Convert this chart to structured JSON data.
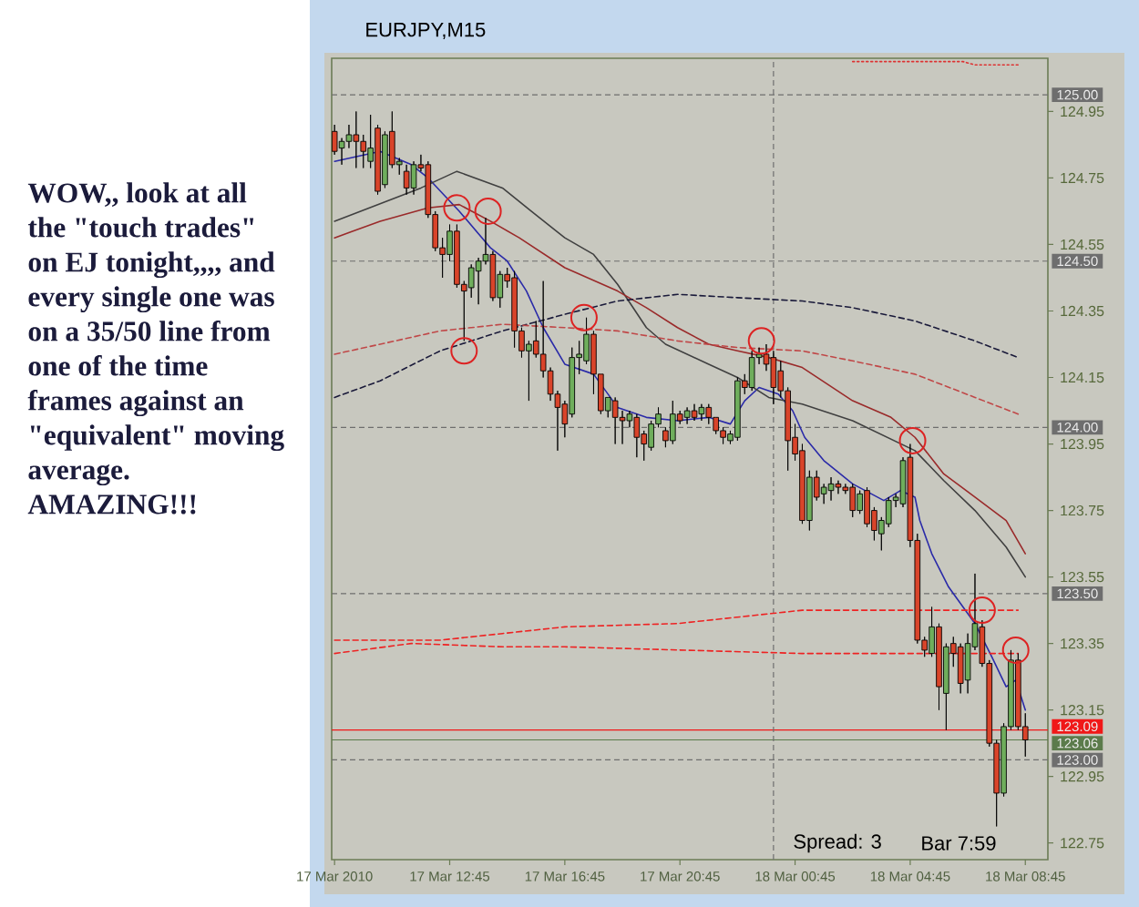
{
  "chart_data": {
    "type": "candlestick",
    "title": "EURJPY,M15",
    "annotations": [
      "WOW,, look at all the \"touch trades\" on EJ tonight,,,, and every single one was on a 35/50 line from one of the time frames against an \"equivalent\" moving average. AMAZING!!!",
      "Spread: 3",
      "Bar 7:59"
    ],
    "x": [
      "2010-03-17T08:45",
      "2010-03-17T09:00",
      "2010-03-17T09:15",
      "2010-03-17T09:30",
      "2010-03-17T09:45",
      "2010-03-17T10:00",
      "2010-03-17T10:15",
      "2010-03-17T10:30",
      "2010-03-17T10:45",
      "2010-03-17T11:00",
      "2010-03-17T11:15",
      "2010-03-17T11:30",
      "2010-03-17T11:45",
      "2010-03-17T12:00",
      "2010-03-17T12:15",
      "2010-03-17T12:30",
      "2010-03-17T12:45",
      "2010-03-17T13:00",
      "2010-03-17T13:15",
      "2010-03-17T13:30",
      "2010-03-17T13:45",
      "2010-03-17T14:00",
      "2010-03-17T14:15",
      "2010-03-17T14:30",
      "2010-03-17T14:45",
      "2010-03-17T15:00",
      "2010-03-17T15:15",
      "2010-03-17T15:30",
      "2010-03-17T15:45",
      "2010-03-17T16:00",
      "2010-03-17T16:15",
      "2010-03-17T16:30",
      "2010-03-17T16:45",
      "2010-03-17T17:00",
      "2010-03-17T17:15",
      "2010-03-17T17:30",
      "2010-03-17T17:45",
      "2010-03-17T18:00",
      "2010-03-17T18:15",
      "2010-03-17T18:30",
      "2010-03-17T18:45",
      "2010-03-17T19:00",
      "2010-03-17T19:15",
      "2010-03-17T19:30",
      "2010-03-17T19:45",
      "2010-03-17T20:00",
      "2010-03-17T20:15",
      "2010-03-17T20:30",
      "2010-03-17T20:45",
      "2010-03-17T21:00",
      "2010-03-17T21:15",
      "2010-03-17T21:30",
      "2010-03-17T21:45",
      "2010-03-17T22:00",
      "2010-03-17T22:15",
      "2010-03-17T22:30",
      "2010-03-17T22:45",
      "2010-03-17T23:00",
      "2010-03-17T23:15",
      "2010-03-17T23:30",
      "2010-03-17T23:45",
      "2010-03-18T00:00",
      "2010-03-18T00:15",
      "2010-03-18T00:30",
      "2010-03-18T00:45",
      "2010-03-18T01:00",
      "2010-03-18T01:15",
      "2010-03-18T01:30",
      "2010-03-18T01:45",
      "2010-03-18T02:00",
      "2010-03-18T02:15",
      "2010-03-18T02:30",
      "2010-03-18T02:45",
      "2010-03-18T03:00",
      "2010-03-18T03:15",
      "2010-03-18T03:30",
      "2010-03-18T03:45",
      "2010-03-18T04:00",
      "2010-03-18T04:15",
      "2010-03-18T04:30",
      "2010-03-18T04:45",
      "2010-03-18T05:00",
      "2010-03-18T05:15",
      "2010-03-18T05:30",
      "2010-03-18T05:45",
      "2010-03-18T06:00",
      "2010-03-18T06:15",
      "2010-03-18T06:30",
      "2010-03-18T06:45",
      "2010-03-18T07:00",
      "2010-03-18T07:15",
      "2010-03-18T07:30",
      "2010-03-18T07:45",
      "2010-03-18T08:00",
      "2010-03-18T08:15",
      "2010-03-18T08:30",
      "2010-03-18T08:45"
    ],
    "ohlc": [
      [
        124.89,
        124.91,
        124.82,
        124.83
      ],
      [
        124.84,
        124.87,
        124.79,
        124.86
      ],
      [
        124.86,
        124.91,
        124.84,
        124.88
      ],
      [
        124.88,
        124.95,
        124.78,
        124.86
      ],
      [
        124.86,
        124.88,
        124.78,
        124.83
      ],
      [
        124.8,
        124.94,
        124.78,
        124.84
      ],
      [
        124.9,
        124.91,
        124.7,
        124.71
      ],
      [
        124.73,
        124.89,
        124.72,
        124.88
      ],
      [
        124.89,
        124.95,
        124.78,
        124.79
      ],
      [
        124.79,
        124.81,
        124.76,
        124.8
      ],
      [
        124.77,
        124.79,
        124.7,
        124.72
      ],
      [
        124.72,
        124.8,
        124.7,
        124.79
      ],
      [
        124.79,
        124.82,
        124.77,
        124.78
      ],
      [
        124.79,
        124.8,
        124.63,
        124.64
      ],
      [
        124.64,
        124.65,
        124.53,
        124.54
      ],
      [
        124.54,
        124.57,
        124.45,
        124.52
      ],
      [
        124.52,
        124.61,
        124.5,
        124.59
      ],
      [
        124.59,
        124.61,
        124.42,
        124.43
      ],
      [
        124.43,
        124.44,
        124.26,
        124.41
      ],
      [
        124.42,
        124.49,
        124.39,
        124.48
      ],
      [
        124.47,
        124.51,
        124.37,
        124.5
      ],
      [
        124.5,
        124.63,
        124.49,
        124.52
      ],
      [
        124.52,
        124.53,
        124.38,
        124.39
      ],
      [
        124.39,
        124.47,
        124.36,
        124.46
      ],
      [
        124.46,
        124.48,
        124.42,
        124.44
      ],
      [
        124.45,
        124.47,
        124.24,
        124.29
      ],
      [
        124.29,
        124.3,
        124.21,
        124.23
      ],
      [
        124.23,
        124.26,
        124.08,
        124.25
      ],
      [
        124.26,
        124.32,
        124.21,
        124.22
      ],
      [
        124.22,
        124.44,
        124.15,
        124.17
      ],
      [
        124.17,
        124.18,
        124.08,
        124.1
      ],
      [
        124.1,
        124.11,
        123.93,
        124.06
      ],
      [
        124.07,
        124.08,
        123.97,
        124.01
      ],
      [
        124.04,
        124.24,
        124.03,
        124.21
      ],
      [
        124.21,
        124.26,
        124.16,
        124.22
      ],
      [
        124.2,
        124.33,
        124.19,
        124.28
      ],
      [
        124.28,
        124.29,
        124.1,
        124.16
      ],
      [
        124.16,
        124.16,
        124.04,
        124.05
      ],
      [
        124.05,
        124.09,
        124.03,
        124.09
      ],
      [
        124.08,
        124.09,
        123.95,
        124.03
      ],
      [
        124.03,
        124.05,
        123.95,
        124.02
      ],
      [
        124.02,
        124.05,
        124.0,
        124.04
      ],
      [
        124.03,
        124.04,
        123.91,
        123.97
      ],
      [
        123.98,
        123.99,
        123.9,
        123.95
      ],
      [
        123.94,
        124.02,
        123.93,
        124.01
      ],
      [
        124.01,
        124.06,
        124.0,
        124.04
      ],
      [
        123.99,
        124.0,
        123.94,
        123.96
      ],
      [
        123.96,
        124.08,
        123.95,
        124.04
      ],
      [
        124.04,
        124.05,
        124.01,
        124.02
      ],
      [
        124.03,
        124.06,
        124.01,
        124.05
      ],
      [
        124.05,
        124.07,
        124.02,
        124.03
      ],
      [
        124.04,
        124.07,
        124.02,
        124.06
      ],
      [
        124.06,
        124.07,
        124.01,
        124.03
      ],
      [
        124.03,
        124.03,
        123.98,
        123.99
      ],
      [
        123.99,
        124.0,
        123.95,
        123.97
      ],
      [
        123.96,
        123.99,
        123.95,
        123.98
      ],
      [
        123.97,
        124.15,
        123.96,
        124.14
      ],
      [
        124.14,
        124.16,
        124.1,
        124.12
      ],
      [
        124.12,
        124.23,
        124.11,
        124.21
      ],
      [
        124.21,
        124.24,
        124.19,
        124.22
      ],
      [
        124.22,
        124.25,
        124.17,
        124.19
      ],
      [
        124.21,
        124.23,
        124.07,
        124.12
      ],
      [
        124.17,
        124.2,
        124.09,
        124.11
      ],
      [
        124.11,
        124.12,
        123.87,
        123.96
      ],
      [
        123.97,
        124.01,
        123.9,
        123.92
      ],
      [
        123.93,
        123.95,
        123.71,
        123.72
      ],
      [
        123.72,
        123.87,
        123.69,
        123.85
      ],
      [
        123.85,
        123.87,
        123.78,
        123.79
      ],
      [
        123.8,
        123.83,
        123.77,
        123.82
      ],
      [
        123.81,
        123.85,
        123.78,
        123.83
      ],
      [
        123.83,
        123.84,
        123.8,
        123.82
      ],
      [
        123.82,
        123.83,
        123.8,
        123.81
      ],
      [
        123.82,
        123.83,
        123.73,
        123.75
      ],
      [
        123.75,
        123.81,
        123.74,
        123.8
      ],
      [
        123.81,
        123.82,
        123.7,
        123.71
      ],
      [
        123.75,
        123.76,
        123.66,
        123.69
      ],
      [
        123.68,
        123.73,
        123.63,
        123.72
      ],
      [
        123.71,
        123.79,
        123.7,
        123.78
      ],
      [
        123.78,
        123.8,
        123.76,
        123.79
      ],
      [
        123.77,
        123.91,
        123.76,
        123.9
      ],
      [
        123.91,
        123.95,
        123.64,
        123.66
      ],
      [
        123.66,
        123.68,
        123.35,
        123.36
      ],
      [
        123.36,
        123.37,
        123.31,
        123.33
      ],
      [
        123.32,
        123.46,
        123.31,
        123.4
      ],
      [
        123.4,
        123.41,
        123.15,
        123.22
      ],
      [
        123.2,
        123.35,
        123.09,
        123.34
      ],
      [
        123.35,
        123.37,
        123.28,
        123.32
      ],
      [
        123.34,
        123.35,
        123.2,
        123.23
      ],
      [
        123.24,
        123.38,
        123.2,
        123.35
      ],
      [
        123.34,
        123.56,
        123.33,
        123.41
      ],
      [
        123.4,
        123.42,
        123.28,
        123.29
      ],
      [
        123.29,
        123.3,
        123.04,
        123.05
      ],
      [
        123.05,
        123.06,
        122.8,
        122.9
      ],
      [
        122.9,
        123.11,
        122.89,
        123.1
      ],
      [
        123.1,
        123.33,
        123.09,
        123.3
      ],
      [
        123.3,
        123.32,
        123.09,
        123.1
      ],
      [
        123.1,
        123.14,
        123.01,
        123.06
      ]
    ],
    "colors": [
      "#d9442a",
      "#6fae5c",
      "#6fae5c",
      "#d9442a",
      "#d9442a",
      "#6fae5c",
      "#d9442a",
      "#6fae5c",
      "#d9442a",
      "#6fae5c",
      "#d9442a",
      "#6fae5c",
      "#d9442a",
      "#d9442a",
      "#d9442a",
      "#d9442a",
      "#6fae5c",
      "#d9442a",
      "#d9442a",
      "#6fae5c",
      "#6fae5c",
      "#6fae5c",
      "#d9442a",
      "#6fae5c",
      "#d9442a",
      "#d9442a",
      "#d9442a",
      "#6fae5c",
      "#d9442a",
      "#d9442a",
      "#d9442a",
      "#d9442a",
      "#d9442a",
      "#6fae5c",
      "#6fae5c",
      "#6fae5c",
      "#d9442a",
      "#d9442a",
      "#6fae5c",
      "#d9442a",
      "#d9442a",
      "#6fae5c",
      "#d9442a",
      "#d9442a",
      "#6fae5c",
      "#6fae5c",
      "#d9442a",
      "#6fae5c",
      "#d9442a",
      "#6fae5c",
      "#d9442a",
      "#6fae5c",
      "#d9442a",
      "#d9442a",
      "#d9442a",
      "#6fae5c",
      "#6fae5c",
      "#d9442a",
      "#6fae5c",
      "#6fae5c",
      "#d9442a",
      "#d9442a",
      "#d9442a",
      "#d9442a",
      "#d9442a",
      "#d9442a",
      "#6fae5c",
      "#d9442a",
      "#6fae5c",
      "#6fae5c",
      "#d9442a",
      "#d9442a",
      "#d9442a",
      "#6fae5c",
      "#d9442a",
      "#d9442a",
      "#6fae5c",
      "#6fae5c",
      "#6fae5c",
      "#6fae5c",
      "#d9442a",
      "#d9442a",
      "#d9442a",
      "#6fae5c",
      "#d9442a",
      "#6fae5c",
      "#d9442a",
      "#d9442a",
      "#6fae5c",
      "#6fae5c",
      "#d9442a",
      "#d9442a",
      "#d9442a",
      "#6fae5c",
      "#6fae5c",
      "#d9442a",
      "#d9442a"
    ],
    "series": [
      {
        "type": "line",
        "color": "#2a2aa8",
        "line_style": "solid",
        "x": [
          "2010-03-17T08:45",
          "2010-03-17T10:20",
          "2010-03-17T11:25",
          "2010-03-17T12:00",
          "2010-03-17T13:05",
          "2010-03-17T14:10",
          "2010-03-17T14:45",
          "2010-03-17T15:25",
          "2010-03-17T16:00",
          "2010-03-17T16:45",
          "2010-03-17T17:45",
          "2010-03-17T18:35",
          "2010-03-17T19:35",
          "2010-03-17T20:40",
          "2010-03-17T21:45",
          "2010-03-17T22:30",
          "2010-03-17T23:00",
          "2010-03-17T23:30",
          "2010-03-18T00:10",
          "2010-03-18T00:40",
          "2010-03-18T01:05",
          "2010-03-18T01:45",
          "2010-03-18T02:45",
          "2010-03-18T03:50",
          "2010-03-18T04:25",
          "2010-03-18T04:55",
          "2010-03-18T05:05",
          "2010-03-18T05:30",
          "2010-03-18T06:05",
          "2010-03-18T07:00",
          "2010-03-18T07:35",
          "2010-03-18T08:05",
          "2010-03-18T08:25",
          "2010-03-18T08:45"
        ],
        "values": [
          124.8,
          124.83,
          124.79,
          124.75,
          124.65,
          124.54,
          124.5,
          124.41,
          124.3,
          124.19,
          124.16,
          124.06,
          124.03,
          124.02,
          124.03,
          124.01,
          124.08,
          124.12,
          124.1,
          124.05,
          123.97,
          123.9,
          123.83,
          123.78,
          123.81,
          123.79,
          123.72,
          123.62,
          123.52,
          123.41,
          123.31,
          123.22,
          123.24,
          123.15
        ]
      },
      {
        "type": "line",
        "color": "#404040",
        "line_style": "solid",
        "x": [
          "2010-03-17T08:45",
          "2010-03-17T10:15",
          "2010-03-17T11:45",
          "2010-03-17T13:00",
          "2010-03-17T14:35",
          "2010-03-17T15:35",
          "2010-03-17T16:45",
          "2010-03-17T17:45",
          "2010-03-17T18:35",
          "2010-03-17T19:35",
          "2010-03-17T20:15",
          "2010-03-17T21:45",
          "2010-03-17T22:45",
          "2010-03-17T23:50",
          "2010-03-18T01:00",
          "2010-03-18T02:45",
          "2010-03-18T04:55",
          "2010-03-18T05:55",
          "2010-03-18T07:00",
          "2010-03-18T08:05",
          "2010-03-18T08:45"
        ],
        "values": [
          124.62,
          124.67,
          124.72,
          124.77,
          124.72,
          124.65,
          124.57,
          124.52,
          124.43,
          124.3,
          124.25,
          124.19,
          124.15,
          124.09,
          124.07,
          124.02,
          123.93,
          123.84,
          123.75,
          123.64,
          123.55
        ]
      },
      {
        "type": "line",
        "color": "#9a2a2a",
        "line_style": "solid",
        "x": [
          "2010-03-17T08:45",
          "2010-03-17T10:20",
          "2010-03-17T12:00",
          "2010-03-17T13:05",
          "2010-03-17T14:10",
          "2010-03-17T15:10",
          "2010-03-17T16:45",
          "2010-03-17T18:35",
          "2010-03-17T19:35",
          "2010-03-17T20:40",
          "2010-03-17T21:45",
          "2010-03-17T22:45",
          "2010-03-17T23:50",
          "2010-03-18T01:00",
          "2010-03-18T02:45",
          "2010-03-18T04:05",
          "2010-03-18T04:55",
          "2010-03-18T05:55",
          "2010-03-18T07:00",
          "2010-03-18T08:05",
          "2010-03-18T08:45"
        ],
        "values": [
          124.57,
          124.62,
          124.66,
          124.67,
          124.62,
          124.57,
          124.48,
          124.41,
          124.36,
          124.3,
          124.25,
          124.23,
          124.21,
          124.18,
          124.08,
          124.03,
          123.97,
          123.86,
          123.79,
          123.72,
          123.62
        ]
      },
      {
        "type": "line",
        "color": "#1a1a3a",
        "line_style": "dashed",
        "x": [
          "2010-03-17T08:45",
          "2010-03-17T10:20",
          "2010-03-17T12:25",
          "2010-03-17T14:35",
          "2010-03-17T16:45",
          "2010-03-17T18:35",
          "2010-03-17T20:40",
          "2010-03-17T22:45",
          "2010-03-18T01:00",
          "2010-03-18T02:45",
          "2010-03-18T04:55",
          "2010-03-18T07:00",
          "2010-03-18T08:30"
        ],
        "values": [
          124.09,
          124.14,
          124.23,
          124.29,
          124.34,
          124.38,
          124.4,
          124.39,
          124.38,
          124.36,
          124.32,
          124.26,
          124.21
        ]
      },
      {
        "type": "line",
        "color": "#c04848",
        "line_style": "dashed",
        "x": [
          "2010-03-17T08:45",
          "2010-03-17T10:20",
          "2010-03-17T12:25",
          "2010-03-17T14:35",
          "2010-03-17T16:45",
          "2010-03-17T18:35",
          "2010-03-17T20:40",
          "2010-03-17T22:45",
          "2010-03-18T01:00",
          "2010-03-18T02:45",
          "2010-03-18T04:55",
          "2010-03-18T07:00",
          "2010-03-18T08:30"
        ],
        "values": [
          124.22,
          124.25,
          124.29,
          124.31,
          124.3,
          124.29,
          124.26,
          124.24,
          124.23,
          124.2,
          124.16,
          124.09,
          124.04
        ]
      },
      {
        "type": "line",
        "color": "#ee2222",
        "line_style": "dashed",
        "x": [
          "2010-03-17T08:45",
          "2010-03-17T12:25",
          "2010-03-17T14:35",
          "2010-03-17T16:45",
          "2010-03-17T20:40",
          "2010-03-18T01:00",
          "2010-03-18T08:30"
        ],
        "values": [
          123.36,
          123.36,
          123.38,
          123.4,
          123.41,
          123.45,
          123.45
        ]
      },
      {
        "type": "line",
        "color": "#ee2222",
        "line_style": "dashed",
        "x": [
          "2010-03-17T08:45",
          "2010-03-17T11:25",
          "2010-03-17T14:35",
          "2010-03-17T16:45",
          "2010-03-18T01:00",
          "2010-03-18T08:30"
        ],
        "values": [
          123.32,
          123.35,
          123.34,
          123.34,
          123.32,
          123.32
        ]
      },
      {
        "type": "line",
        "color": "#dd3333",
        "line_style": "dotted",
        "x": [
          "2010-03-18T02:45",
          "2010-03-18T06:35",
          "2010-03-18T07:00",
          "2010-03-18T08:30"
        ],
        "values": [
          125.1,
          125.1,
          125.09,
          125.09
        ]
      },
      {
        "type": "scatter",
        "color": "#dd2222",
        "marker": "circle",
        "x": [
          "2010-03-17T13:00",
          "2010-03-17T13:15",
          "2010-03-17T14:05",
          "2010-03-17T17:25",
          "2010-03-17T23:35",
          "2010-03-18T04:50",
          "2010-03-18T07:15",
          "2010-03-18T08:25"
        ],
        "values": [
          124.66,
          124.23,
          124.65,
          124.33,
          124.26,
          123.96,
          123.45,
          123.33
        ]
      }
    ],
    "xlim": [
      "2010-03-17T08:39",
      "2010-03-18T09:32"
    ],
    "ylim": [
      122.7,
      125.11
    ],
    "xticks": [
      {
        "value": "2010-03-17T08:45",
        "label": "17 Mar 2010"
      },
      {
        "value": "2010-03-17T12:45",
        "label": "17 Mar 12:45"
      },
      {
        "value": "2010-03-17T16:45",
        "label": "17 Mar 16:45"
      },
      {
        "value": "2010-03-17T20:45",
        "label": "17 Mar 20:45"
      },
      {
        "value": "2010-03-18T00:45",
        "label": "18 Mar 00:45"
      },
      {
        "value": "2010-03-18T04:45",
        "label": "18 Mar 04:45"
      },
      {
        "value": "2010-03-18T08:45",
        "label": "18 Mar 08:45"
      }
    ],
    "yticks": [
      122.75,
      122.95,
      123.15,
      123.35,
      123.55,
      123.75,
      123.95,
      124.15,
      124.35,
      124.55,
      124.75,
      124.95
    ],
    "ref_lines": [
      {
        "axis": "y",
        "value": 125.0,
        "label": "125.00",
        "color": "#6e6e6e",
        "line_style": "dashed"
      },
      {
        "axis": "y",
        "value": 124.5,
        "label": "124.50",
        "color": "#6e6e6e",
        "line_style": "dashed"
      },
      {
        "axis": "y",
        "value": 124.0,
        "label": "124.00",
        "color": "#6e6e6e",
        "line_style": "dashed"
      },
      {
        "axis": "y",
        "value": 123.5,
        "label": "123.50",
        "color": "#6e6e6e",
        "line_style": "dashed"
      },
      {
        "axis": "y",
        "value": 123.0,
        "label": "123.00",
        "color": "#6e6e6e",
        "line_style": "dashed"
      },
      {
        "axis": "y",
        "value": 123.09,
        "label": "123.09",
        "color": "#f01818",
        "line_style": "solid"
      },
      {
        "axis": "y",
        "value": 123.06,
        "label": "123.06",
        "color": "#5b7b4b",
        "line_style": "solid"
      },
      {
        "axis": "x",
        "value": "2010-03-18T00:00",
        "color": "#6e6e6e",
        "line_style": "dashed"
      }
    ]
  }
}
